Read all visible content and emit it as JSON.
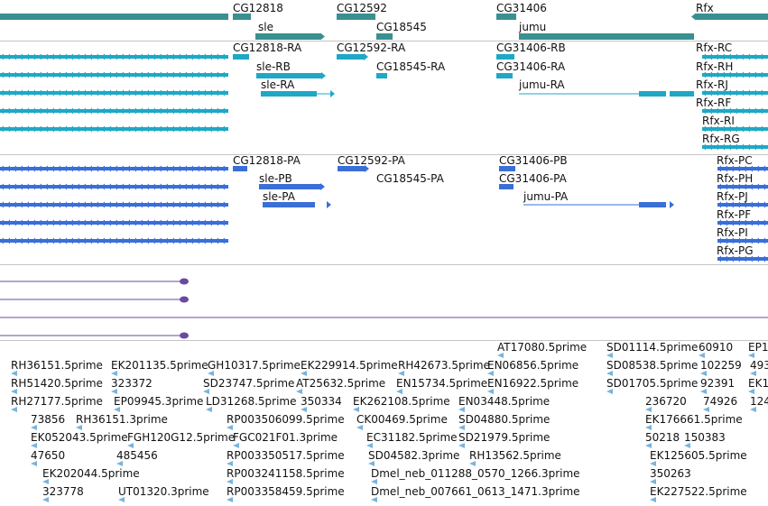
{
  "colors": {
    "gene": "#3a9090",
    "transcript_ra": "#1ea8c6",
    "transcript_pa": "#3a6fd8",
    "dark_line": "#6a4aa0",
    "est": "#78b4de",
    "separator": "#c4c4c4"
  },
  "genes": [
    "CG12818",
    "sle",
    "CG12592",
    "CG18545",
    "CG31406",
    "jumu",
    "Rfx"
  ],
  "transcripts_ra": [
    "CG12818-RA",
    "sle-RB",
    "sle-RA",
    "CG12592-RA",
    "CG18545-RA",
    "CG31406-RB",
    "CG31406-RA",
    "jumu-RA",
    "Rfx-RC",
    "Rfx-RH",
    "Rfx-RJ",
    "Rfx-RF",
    "Rfx-RI",
    "Rfx-RG"
  ],
  "transcripts_pa": [
    "CG12818-PA",
    "sle-PB",
    "sle-PA",
    "CG12592-PA",
    "CG18545-PA",
    "CG31406-PB",
    "CG31406-PA",
    "jumu-PA",
    "Rfx-PC",
    "Rfx-PH",
    "Rfx-PJ",
    "Rfx-PF",
    "Rfx-PI",
    "Rfx-PG"
  ],
  "ests": [
    "AT17080.5prime",
    "SD01114.5prime",
    "60910",
    "EP1",
    "RH36151.5prime",
    "EK201135.5prime",
    "GH10317.5prime",
    "EK229914.5prime",
    "RH42673.5prime",
    "EN06856.5prime",
    "SD08538.5prime",
    "102259",
    "493",
    "RH51420.5prime",
    "323372",
    "SD23747.5prime",
    "AT25632.5prime",
    "EN15734.5prime",
    "EN16922.5prime",
    "SD01705.5prime",
    "92391",
    "EK1",
    "RH27177.5prime",
    "EP09945.3prime",
    "LD31268.5prime",
    "350334",
    "EK262108.5prime",
    "EN03448.5prime",
    "236720",
    "74926",
    "124",
    "73856",
    "RH36151.3prime",
    "RP003506099.5prime",
    "CK00469.5prime",
    "SD04880.5prime",
    "EK176661.5prime",
    "EK052043.5prime",
    "FGH120G12.5prime",
    "FGC021F01.3prime",
    "EC31182.5prime",
    "SD21979.5prime",
    "50218",
    "150383",
    "47650",
    "485456",
    "RP003350517.5prime",
    "SD04582.3prime",
    "RH13562.5prime",
    "EK125605.5prime",
    "EK202044.5prime",
    "RP003241158.5prime",
    "Dmel_neb_011288_0570_1266.3prime",
    "350263",
    "323778",
    "UT01320.3prime",
    "RP003358459.5prime",
    "Dmel_neb_007661_0613_1471.3prime",
    "EK227522.5prime"
  ]
}
